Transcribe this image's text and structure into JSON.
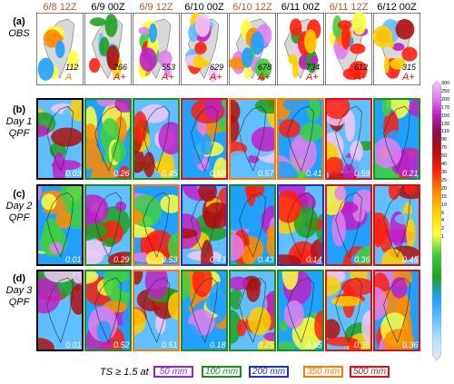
{
  "columns": [
    "6/8 12Z",
    "6/9 00Z",
    "6/9 12Z",
    "6/10 00Z",
    "6/10 12Z",
    "6/11 00Z",
    "6/11 12Z",
    "6/12 00Z"
  ],
  "column_colors": [
    "#b8572a",
    "#000000",
    "#b8572a",
    "#000000",
    "#b8572a",
    "#000000",
    "#b8572a",
    "#000000"
  ],
  "rows": [
    {
      "tag": "(a)",
      "name": "OBS"
    },
    {
      "tag": "(b)",
      "name": "Day 1",
      "sub": "QPF"
    },
    {
      "tag": "(c)",
      "name": "Day 2",
      "sub": "QPF"
    },
    {
      "tag": "(d)",
      "name": "Day 3",
      "sub": "QPF"
    }
  ],
  "obs_values": [
    "112",
    "266",
    "553",
    "629",
    "678",
    "734",
    "612",
    "315"
  ],
  "obs_grades": [
    "A",
    "A+",
    "A+",
    "A+",
    "A+",
    "A+",
    "A+",
    "A+"
  ],
  "day1_ts": [
    "0.03",
    "0.26",
    "0.45",
    "0.68",
    "0.57",
    "0.41",
    "0.59",
    "0.21"
  ],
  "day2_ts": [
    "0.01",
    "0.29",
    "0.53",
    "0.43",
    "0.43",
    "0.14",
    "0.36",
    "0.45"
  ],
  "day3_ts": [
    "0.01",
    "0.52",
    "0.51",
    "0.18",
    "0.25",
    "0.15",
    "0.36",
    "0.36"
  ],
  "colorbar_ticks": [
    "300",
    "250",
    "200",
    "170",
    "150",
    "130",
    "110",
    "90",
    "70",
    "50",
    "40",
    "30",
    "25",
    "20",
    "15",
    "10",
    "6",
    "4",
    "2",
    "1"
  ],
  "legend": {
    "title": "TS ≥ 1.5 at",
    "items": [
      {
        "label": "50 mm",
        "color": "#8a2be2"
      },
      {
        "label": "100 mm",
        "color": "#1a8f1a"
      },
      {
        "label": "200 mm",
        "color": "#1f2fd0"
      },
      {
        "label": "350 mm",
        "color": "#ff7a00"
      },
      {
        "label": "500 mm",
        "color": "#e01010"
      }
    ]
  },
  "frame_colors": {
    "day1": [
      "#000000",
      "#1a8f1a",
      "#1a8f1a",
      "#e01010",
      "#ff7a00",
      "#ff7a00",
      "#e01010",
      "#1a8f1a"
    ],
    "day2": [
      "#000000",
      "#1a8f1a",
      "#ff7a00",
      "#1f2fd0",
      "#1a8f1a",
      "#1f2fd0",
      "#e01010",
      "#e01010"
    ],
    "day3": [
      "#000000",
      "#1a8f1a",
      "#ff7a00",
      "#1a8f1a",
      "#1a8f1a",
      "#1a8f1a",
      "#e01010",
      "#e01010"
    ]
  }
}
